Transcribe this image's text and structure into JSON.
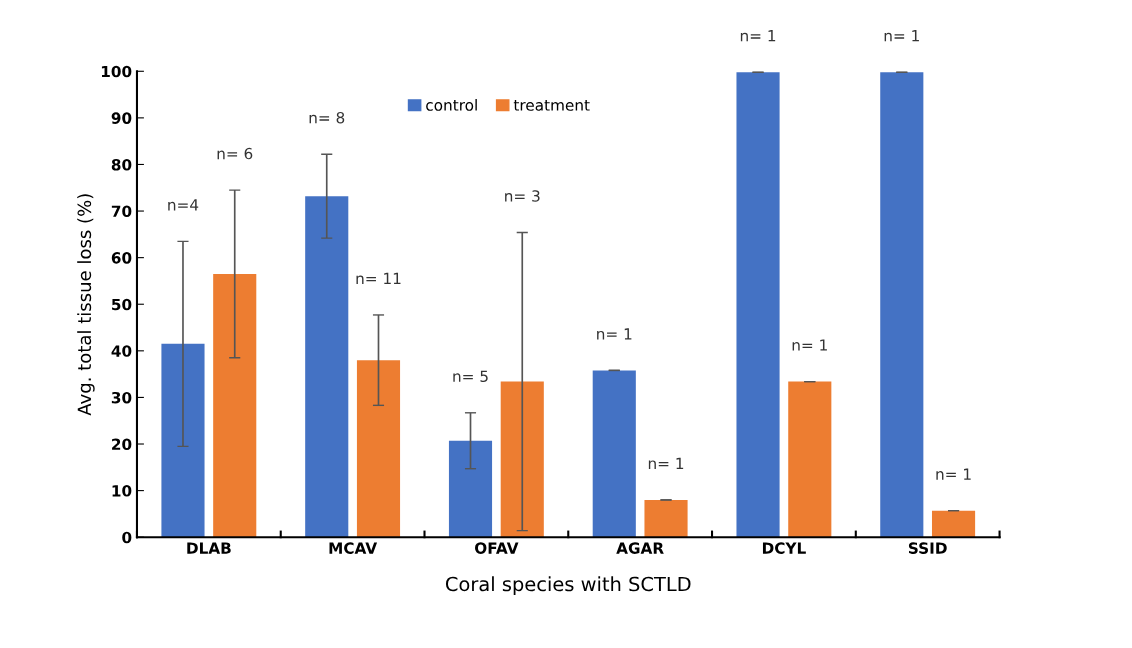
{
  "chart_data": {
    "type": "bar",
    "ylabel": "Avg. total tissue loss (%)",
    "xlabel": "Coral species with SCTLD",
    "categories": [
      "DLAB",
      "MCAV",
      "OFAV",
      "AGAR",
      "DCYL",
      "SSID"
    ],
    "series": [
      {
        "name": "control",
        "color": "#4472c4",
        "values": [
          41.5,
          73.2,
          20.7,
          35.8,
          99.8,
          99.8
        ],
        "errors": [
          22,
          9,
          6,
          0,
          0,
          0
        ]
      },
      {
        "name": "treatment",
        "color": "#ed7d31",
        "values": [
          56.5,
          38,
          33.4,
          8,
          33.4,
          5.7
        ],
        "errors": [
          18,
          9.7,
          32,
          0,
          0,
          0
        ]
      }
    ],
    "annotations": [
      "n=4",
      "n= 6",
      "n= 8",
      "n= 11",
      "n= 5",
      "n= 3",
      "n= 1",
      "n= 1",
      "n= 1",
      "n= 1",
      "n= 1",
      "n= 1"
    ],
    "ylim": [
      0,
      100
    ],
    "yticks": [
      0,
      10,
      20,
      30,
      40,
      50,
      60,
      70,
      80,
      90,
      100
    ],
    "grid": false,
    "legend": "top"
  }
}
